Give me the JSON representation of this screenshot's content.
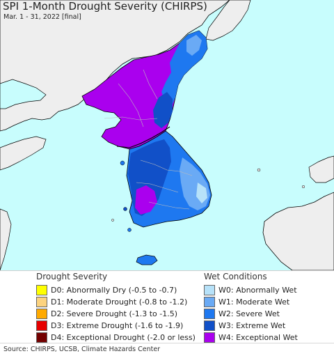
{
  "map": {
    "title": "SPI 1-Month Drought Severity (CHIRPS)",
    "subtitle": "Mar. 1 - 31, 2022 [final]",
    "colors": {
      "water": "#c8fdfd",
      "land_no_data": "#eeeeee",
      "w4": "#aa00ee",
      "w3": "#1150c8",
      "w2": "#1e78f0",
      "w1": "#6aaaf5",
      "w0": "#b7e2f9",
      "border": "#000000"
    }
  },
  "legend": {
    "drought": {
      "title": "Drought Severity",
      "items": [
        {
          "label": "D0: Abnormally Dry (-0.5 to -0.7)",
          "color": "#ffff00"
        },
        {
          "label": "D1: Moderate Drought (-0.8 to -1.2)",
          "color": "#fcd37f"
        },
        {
          "label": "D2: Severe Drought (-1.3 to -1.5)",
          "color": "#ffaa00"
        },
        {
          "label": "D3: Extreme Drought (-1.6 to -1.9)",
          "color": "#e60000"
        },
        {
          "label": "D4: Exceptional Drought (-2.0 or less)",
          "color": "#730000"
        }
      ]
    },
    "wet": {
      "title": "Wet Conditions",
      "items": [
        {
          "label": "W0: Abnormally Wet",
          "color": "#b7e2f9"
        },
        {
          "label": "W1: Moderate Wet",
          "color": "#6aaaf5"
        },
        {
          "label": "W2: Severe Wet",
          "color": "#1e78f0"
        },
        {
          "label": "W3: Extreme Wet",
          "color": "#1150c8"
        },
        {
          "label": "W4: Exceptional Wet",
          "color": "#aa00ee"
        }
      ]
    }
  },
  "footer": {
    "source": "Source: CHIRPS, UCSB, Climate Hazards Center"
  }
}
